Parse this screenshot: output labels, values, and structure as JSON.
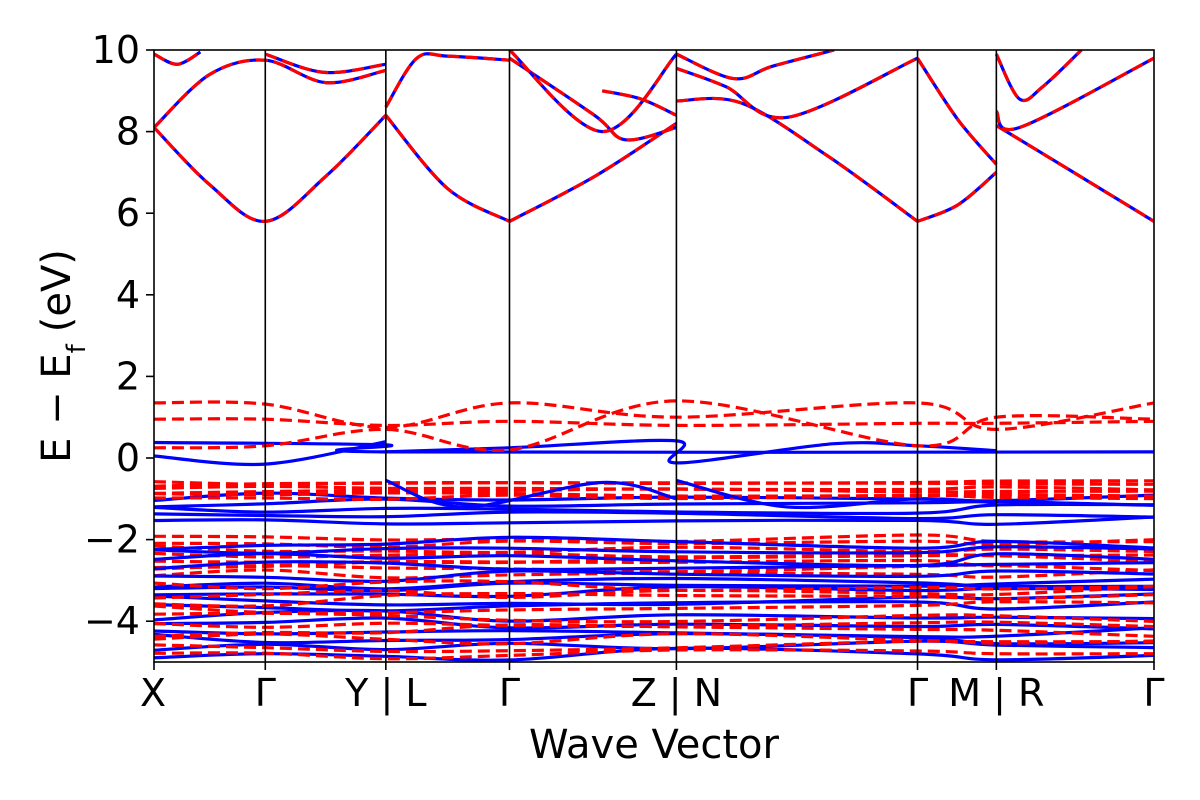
{
  "chart_data": {
    "type": "line",
    "xlabel": "Wave Vector",
    "ylabel": "E − E",
    "ylabel_sub": "f",
    "ylabel_unit": "(eV)",
    "ylim": [
      -5,
      10
    ],
    "yticks": [
      -4,
      -2,
      0,
      2,
      4,
      6,
      8,
      10
    ],
    "ytick_labels": [
      "−4",
      "−2",
      "0",
      "2",
      "4",
      "6",
      "8",
      "10"
    ],
    "grid": false,
    "legend": "none",
    "xlim": [
      0,
      6.47
    ],
    "kpoints": [
      {
        "x": 0.0,
        "label": "X"
      },
      {
        "x": 0.72,
        "label": "Γ"
      },
      {
        "x": 1.5,
        "label": "Y | L"
      },
      {
        "x": 2.3,
        "label": "Γ"
      },
      {
        "x": 3.38,
        "label": "Z | N"
      },
      {
        "x": 4.94,
        "label": "Γ"
      },
      {
        "x": 5.45,
        "label": "M | R"
      },
      {
        "x": 6.47,
        "label": "Γ"
      }
    ],
    "series_styles": [
      {
        "id": "solid",
        "color": "#0000ff",
        "dash": "none"
      },
      {
        "id": "dashed",
        "color": "#ff0000",
        "dash": "12 6"
      }
    ],
    "conduction_bands": [
      {
        "x": [
          0.0,
          0.36,
          0.72,
          1.11,
          1.5
        ],
        "y": [
          8.1,
          6.7,
          5.8,
          6.9,
          8.4
        ]
      },
      {
        "x": [
          0.0,
          0.36,
          0.72,
          1.11,
          1.5
        ],
        "y": [
          8.1,
          9.4,
          9.75,
          9.2,
          9.5
        ]
      },
      {
        "x": [
          0.0,
          0.15,
          0.3
        ],
        "y": [
          9.9,
          9.65,
          9.95
        ]
      },
      {
        "x": [
          0.72,
          1.1,
          1.5
        ],
        "y": [
          9.9,
          9.45,
          9.65
        ]
      },
      {
        "x": [
          1.5,
          1.9,
          2.3
        ],
        "y": [
          8.4,
          6.6,
          5.8
        ]
      },
      {
        "x": [
          1.5,
          1.7,
          1.9,
          2.3
        ],
        "y": [
          8.6,
          9.8,
          9.85,
          9.75
        ]
      },
      {
        "x": [
          2.3,
          2.85,
          3.38
        ],
        "y": [
          5.8,
          6.9,
          8.2
        ]
      },
      {
        "x": [
          2.3,
          2.85,
          3.05,
          3.38
        ],
        "y": [
          9.8,
          8.4,
          7.8,
          8.1
        ]
      },
      {
        "x": [
          2.3,
          2.9,
          3.38
        ],
        "y": [
          10.0,
          8.0,
          9.9
        ]
      },
      {
        "x": [
          2.9,
          3.15,
          3.38
        ],
        "y": [
          9.0,
          8.8,
          8.4
        ]
      },
      {
        "x": [
          3.38,
          3.8,
          4.36,
          4.94
        ],
        "y": [
          8.75,
          8.7,
          7.4,
          5.8
        ]
      },
      {
        "x": [
          3.38,
          3.7,
          4.1,
          4.94
        ],
        "y": [
          9.55,
          9.1,
          8.35,
          9.8
        ]
      },
      {
        "x": [
          3.38,
          3.75,
          4.0,
          4.4
        ],
        "y": [
          9.9,
          9.3,
          9.6,
          10.0
        ]
      },
      {
        "x": [
          4.94,
          5.2,
          5.45
        ],
        "y": [
          5.8,
          6.2,
          7.0
        ]
      },
      {
        "x": [
          4.94,
          5.2,
          5.45
        ],
        "y": [
          9.8,
          8.3,
          7.2
        ]
      },
      {
        "x": [
          5.45,
          5.95,
          6.47
        ],
        "y": [
          8.15,
          7.0,
          5.8
        ]
      },
      {
        "x": [
          5.45,
          5.6,
          6.47
        ],
        "y": [
          8.5,
          8.1,
          9.8
        ]
      },
      {
        "x": [
          5.45,
          5.6,
          5.75,
          6.0
        ],
        "y": [
          9.9,
          8.8,
          9.1,
          10.0
        ]
      }
    ],
    "valence_solid": [
      {
        "x": [
          0.0,
          1.5,
          1.5,
          6.47
        ],
        "y": [
          0.38,
          0.32,
          0.15,
          0.15
        ]
      },
      {
        "x": [
          0.0,
          0.72,
          1.5
        ],
        "y": [
          0.05,
          -0.15,
          0.4
        ]
      },
      {
        "x": [
          1.5,
          2.3,
          3.38,
          3.38,
          4.4,
          4.94,
          5.45
        ],
        "y": [
          0.15,
          0.25,
          0.42,
          -0.12,
          0.35,
          0.3,
          0.18
        ]
      },
      {
        "x": [
          1.5,
          2.0,
          2.9,
          3.38
        ],
        "y": [
          -0.55,
          -1.2,
          -0.6,
          -1.0
        ]
      },
      {
        "x": [
          3.38,
          4.1,
          4.94,
          5.45
        ],
        "y": [
          -0.55,
          -1.2,
          -1.0,
          -1.1
        ]
      }
    ],
    "valence_dashed": [
      {
        "x": [
          0.0,
          0.72,
          1.5,
          2.3,
          3.38,
          4.94,
          5.45,
          6.47
        ],
        "y": [
          1.35,
          1.32,
          0.75,
          1.35,
          1.0,
          1.35,
          0.7,
          1.35
        ]
      },
      {
        "x": [
          0.0,
          0.72,
          1.5,
          2.3,
          3.38,
          4.94,
          5.45,
          6.47
        ],
        "y": [
          0.95,
          0.95,
          0.8,
          0.9,
          0.8,
          0.85,
          0.85,
          0.9
        ]
      },
      {
        "x": [
          0.0,
          0.72,
          1.5,
          2.3,
          3.38,
          4.94,
          5.45,
          6.47
        ],
        "y": [
          0.25,
          0.3,
          0.7,
          0.2,
          1.4,
          0.3,
          1.0,
          0.95
        ]
      }
    ],
    "band_clusters": [
      {
        "y_min": -1.6,
        "y_max": -0.9,
        "count": 5,
        "style": "solid"
      },
      {
        "y_min": -1.0,
        "y_max": -0.55,
        "count": 6,
        "style": "dashed"
      },
      {
        "y_min": -2.9,
        "y_max": -1.9,
        "count": 8,
        "style": "dashed"
      },
      {
        "y_min": -3.2,
        "y_max": -2.0,
        "count": 6,
        "style": "solid"
      },
      {
        "y_min": -4.9,
        "y_max": -3.0,
        "count": 10,
        "style": "solid"
      },
      {
        "y_min": -4.9,
        "y_max": -3.0,
        "count": 10,
        "style": "dashed"
      }
    ]
  }
}
